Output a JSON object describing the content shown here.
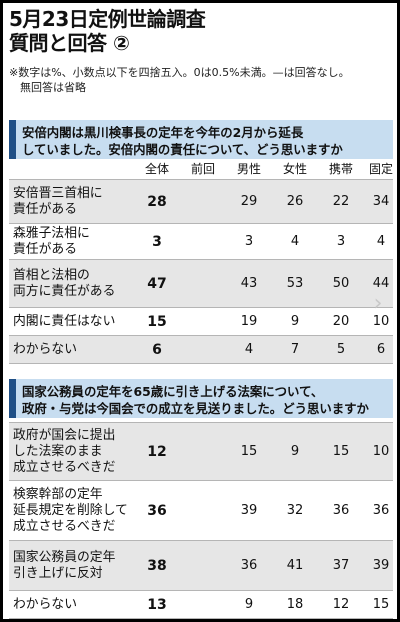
{
  "title": {
    "line1": "5月23日定例世論調査",
    "line2": "質問と回答 ②"
  },
  "notes": {
    "note1": "※数字は%、小数点以下を四捨五入。0は0.5%未満。—は回答なし。",
    "note2": "無回答は省略"
  },
  "columns": [
    "全体",
    "前回",
    "男性",
    "女性",
    "携帯",
    "固定"
  ],
  "questions": [
    {
      "text_line1": "安倍内閣は黒川検事長の定年を今年の2月から延長",
      "text_line2": "していました。安倍内閣の責任について、どう思いますか",
      "rows": [
        {
          "label": "安倍晋三首相に\n責任がある",
          "values": [
            "28",
            "29",
            "26",
            "22",
            "34"
          ],
          "prev": ""
        },
        {
          "label": "森雅子法相に\n責任がある",
          "values": [
            "3",
            "3",
            "4",
            "3",
            "4"
          ],
          "prev": ""
        },
        {
          "label": "首相と法相の\n両方に責任がある",
          "values": [
            "47",
            "43",
            "53",
            "50",
            "44"
          ],
          "prev": ""
        },
        {
          "label": "内閣に責任はない",
          "values": [
            "15",
            "19",
            "9",
            "20",
            "10"
          ],
          "prev": ""
        },
        {
          "label": "わからない",
          "values": [
            "6",
            "4",
            "7",
            "5",
            "6"
          ],
          "prev": ""
        }
      ]
    },
    {
      "text_line1": "国家公務員の定年を65歳に引き上げる法案について、",
      "text_line2": "政府・与党は今国会での成立を見送りました。どう思いますか",
      "rows": [
        {
          "label": "政府が国会に提出\nした法案のまま\n成立させるべきだ",
          "values": [
            "12",
            "15",
            "9",
            "15",
            "10"
          ],
          "prev": ""
        },
        {
          "label": "検察幹部の定年\n延長規定を削除して\n成立させるべきだ",
          "values": [
            "36",
            "39",
            "32",
            "36",
            "36"
          ],
          "prev": ""
        },
        {
          "label": "国家公務員の定年\n引き上げに反対",
          "values": [
            "38",
            "36",
            "41",
            "37",
            "39"
          ],
          "prev": ""
        },
        {
          "label": "わからない",
          "values": [
            "13",
            "9",
            "18",
            "12",
            "15"
          ],
          "prev": ""
        }
      ]
    }
  ],
  "nav_icon": "chevron-right-icon"
}
